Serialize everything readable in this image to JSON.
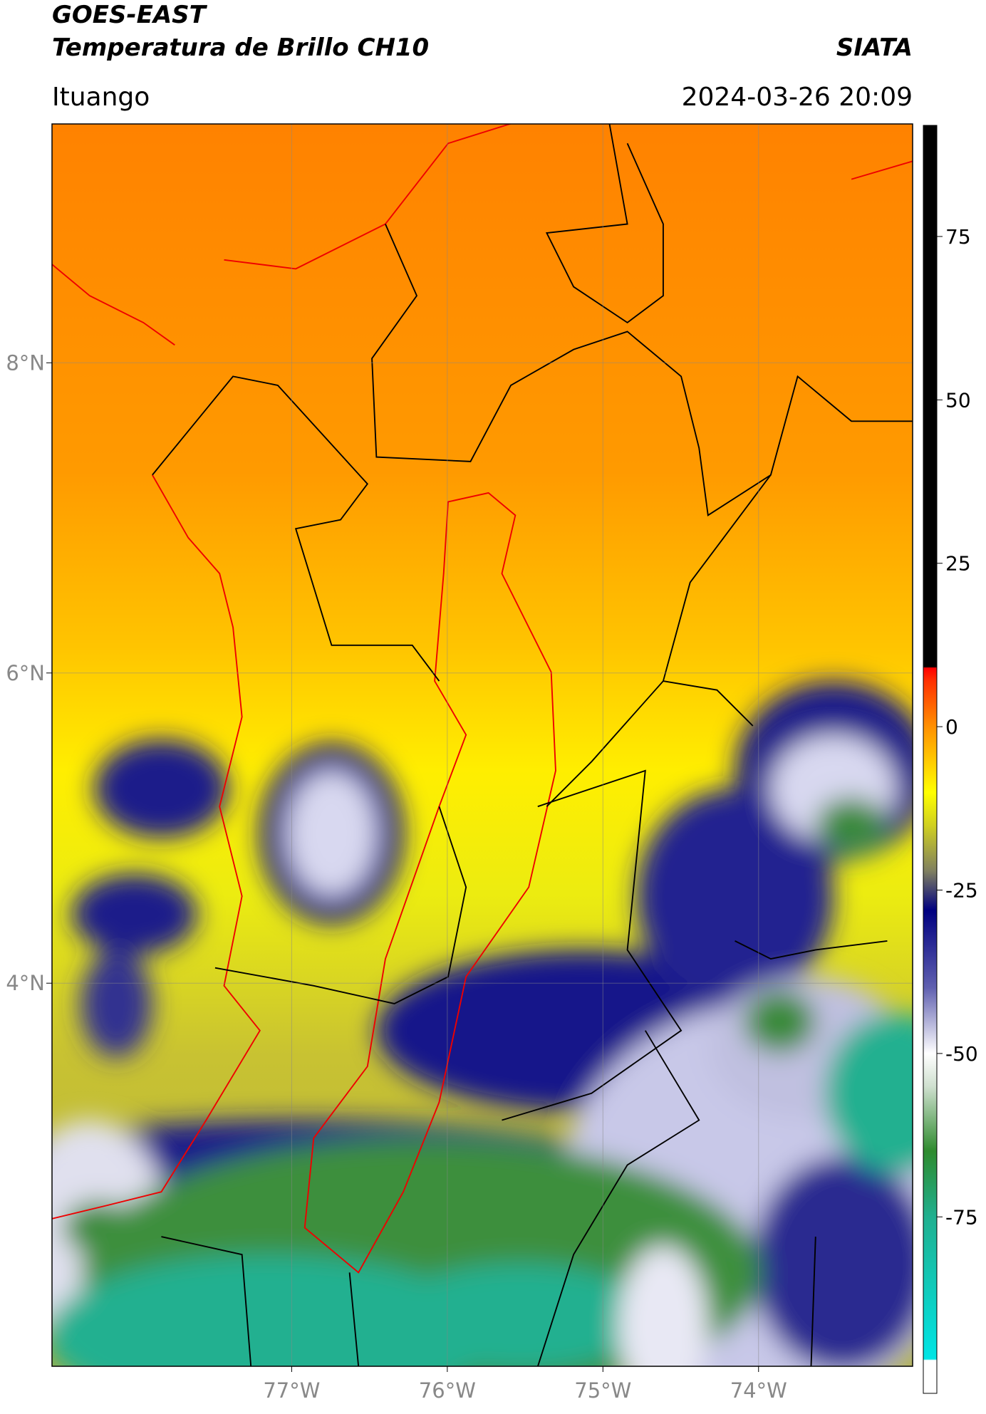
{
  "header": {
    "title": "GOES-EAST",
    "subtitle": "Temperatura de Brillo CH10",
    "source": "SIATA",
    "location": "Ituango",
    "timestamp": "2024-03-26 20:09"
  },
  "map": {
    "xlim": [
      -78.54,
      -73.01
    ],
    "ylim": [
      1.53,
      9.54
    ],
    "xticks": [
      {
        "value": -77,
        "label": "77°W"
      },
      {
        "value": -76,
        "label": "76°W"
      },
      {
        "value": -75,
        "label": "75°W"
      },
      {
        "value": -74,
        "label": "74°W"
      }
    ],
    "yticks": [
      {
        "value": 8,
        "label": "8°N"
      },
      {
        "value": 6,
        "label": "6°N"
      },
      {
        "value": 4,
        "label": "4°N"
      }
    ],
    "grid": true
  },
  "colorbar": {
    "lim": [
      -102,
      92
    ],
    "ticks": [
      75,
      50,
      25,
      0,
      -25,
      -50,
      -75
    ]
  }
}
